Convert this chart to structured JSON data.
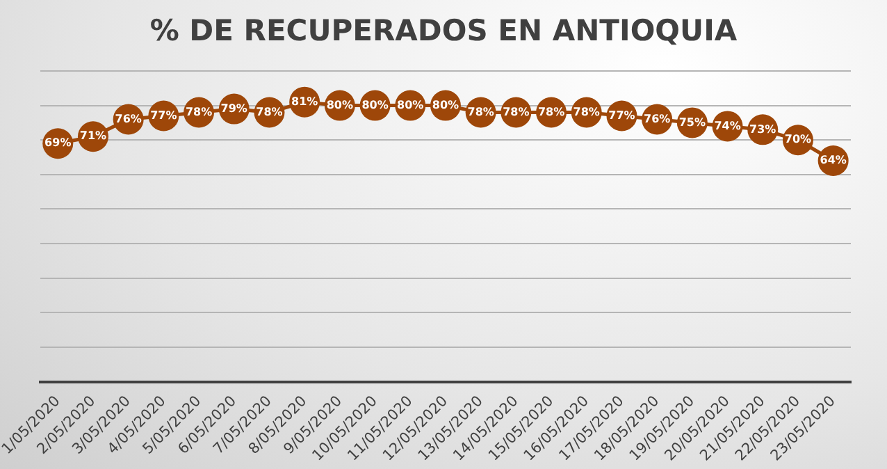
{
  "chart_data": {
    "type": "line",
    "title": "% DE RECUPERADOS EN ANTIOQUIA",
    "categories": [
      "1/05/2020",
      "2/05/2020",
      "3/05/2020",
      "4/05/2020",
      "5/05/2020",
      "6/05/2020",
      "7/05/2020",
      "8/05/2020",
      "9/05/2020",
      "10/05/2020",
      "11/05/2020",
      "12/05/2020",
      "13/05/2020",
      "14/05/2020",
      "15/05/2020",
      "16/05/2020",
      "17/05/2020",
      "18/05/2020",
      "19/05/2020",
      "20/05/2020",
      "21/05/2020",
      "22/05/2020",
      "23/05/2020"
    ],
    "series": [
      {
        "color": "#9e4709",
        "values": [
          69,
          71,
          76,
          77,
          78,
          79,
          78,
          81,
          80,
          80,
          80,
          80,
          78,
          78,
          78,
          78,
          77,
          76,
          75,
          74,
          73,
          70,
          64
        ],
        "value_labels": [
          "69%",
          "71%",
          "76%",
          "77%",
          "78%",
          "79%",
          "78%",
          "81%",
          "80%",
          "80%",
          "80%",
          "80%",
          "78%",
          "78%",
          "78%",
          "78%",
          "77%",
          "76%",
          "75%",
          "74%",
          "73%",
          "70%",
          "64%"
        ]
      }
    ],
    "ylim": [
      0,
      90
    ],
    "yticks": [
      {
        "value": 0,
        "label": null
      },
      {
        "value": 10,
        "label": null
      },
      {
        "value": 20,
        "label": null
      },
      {
        "value": 30,
        "label": null
      },
      {
        "value": 40,
        "label": null
      },
      {
        "value": 50,
        "label": null
      },
      {
        "value": 60,
        "label": null
      },
      {
        "value": 70,
        "label": null
      },
      {
        "value": 80,
        "label": null
      },
      {
        "value": 90,
        "label": null
      }
    ],
    "grid": "y",
    "tick_labels": "x",
    "marker": "circle",
    "line_style": "solid",
    "legend": false
  }
}
